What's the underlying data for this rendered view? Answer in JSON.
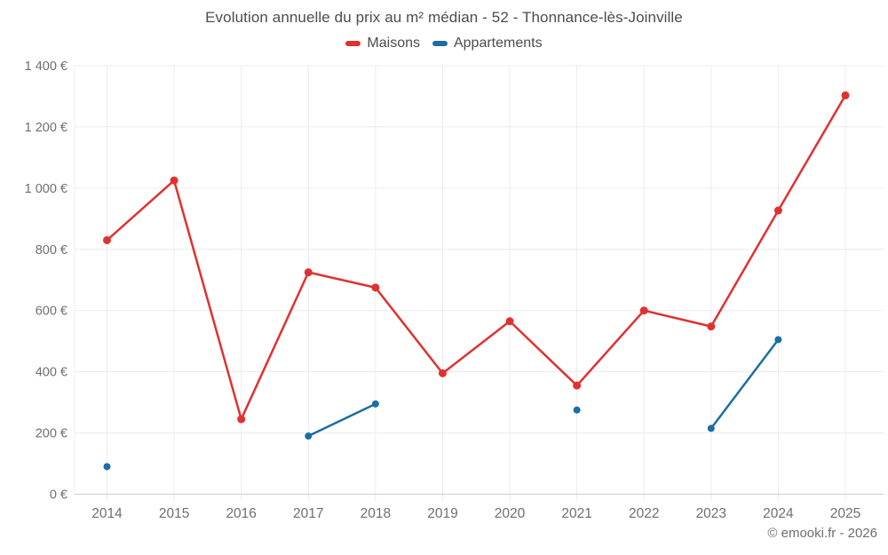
{
  "page": {
    "footer": "© emooki.fr - 2026"
  },
  "colors": {
    "maisons": "#e03131",
    "appartements": "#1c6ea4",
    "grid": "#ececec",
    "axis_line": "#cccccc",
    "title_text": "#4d4d4d",
    "tick_text": "#6f6f6f"
  },
  "chart_data": {
    "type": "line",
    "title": "Evolution annuelle du prix au m² médian - 52 - Thonnance-lès-Joinville",
    "categories": [
      "2014",
      "2015",
      "2016",
      "2017",
      "2018",
      "2019",
      "2020",
      "2021",
      "2022",
      "2023",
      "2024",
      "2025"
    ],
    "series": [
      {
        "name": "Maisons",
        "color": "#e03131",
        "values": [
          830,
          1025,
          245,
          725,
          675,
          395,
          565,
          355,
          600,
          548,
          927,
          1303
        ]
      },
      {
        "name": "Appartements",
        "color": "#1c6ea4",
        "values": [
          90,
          null,
          null,
          190,
          295,
          null,
          null,
          275,
          null,
          215,
          505,
          null
        ]
      }
    ],
    "ylim": [
      0,
      1400
    ],
    "ytick_step": 200,
    "ytick_labels": [
      "0 €",
      "200 €",
      "400 €",
      "600 €",
      "800 €",
      "1 000 €",
      "1 200 €",
      "1 400 €"
    ],
    "grid": true,
    "legend_position": "top",
    "marker": "circle"
  }
}
